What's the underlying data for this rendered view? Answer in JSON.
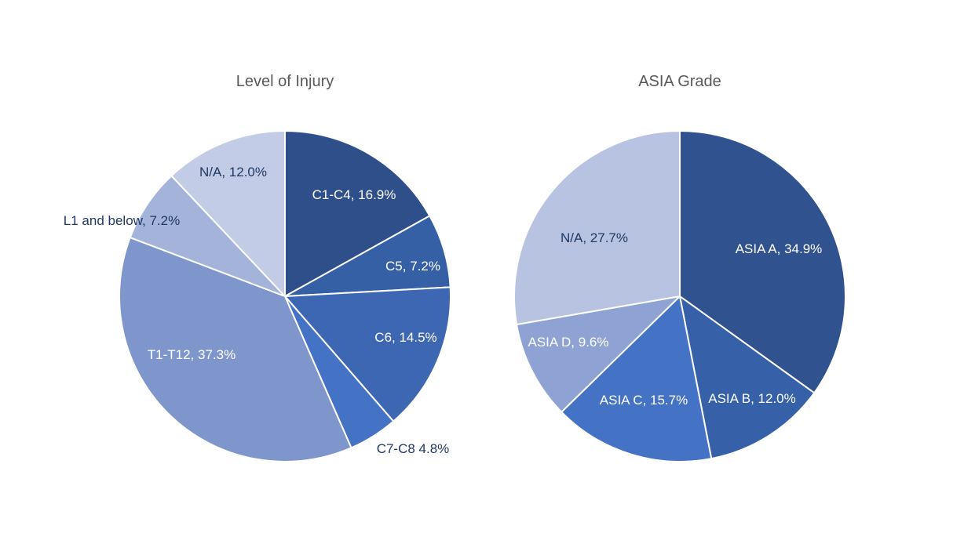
{
  "chart_data": [
    {
      "type": "pie",
      "title": "Level of Injury",
      "slices": [
        {
          "label": "C1-C4, 16.9%",
          "category": "C1-C4",
          "value": 16.9,
          "color": "#2F4F8B",
          "label_color": "#FFFFFF"
        },
        {
          "label": "C5, 7.2%",
          "category": "C5",
          "value": 7.2,
          "color": "#3560A6",
          "label_color": "#FFFFFF"
        },
        {
          "label": "C6, 14.5%",
          "category": "C6",
          "value": 14.5,
          "color": "#3D66B3",
          "label_color": "#FFFFFF"
        },
        {
          "label": "C7-C8  4.8%",
          "category": "C7-C8",
          "value": 4.8,
          "color": "#4472C4",
          "label_color": "#1F3864"
        },
        {
          "label": "T1-T12, 37.3%",
          "category": "T1-T12",
          "value": 37.3,
          "color": "#7F96CD",
          "label_color": "#FFFFFF"
        },
        {
          "label": "L1 and below, 7.2%",
          "category": "L1 and below",
          "value": 7.2,
          "color": "#A4B3D9",
          "label_color": "#1F3864"
        },
        {
          "label": "N/A, 12.0%",
          "category": "N/A",
          "value": 12.0,
          "color": "#C3CCE6",
          "label_color": "#1F3864"
        }
      ]
    },
    {
      "type": "pie",
      "title": "ASIA Grade",
      "slices": [
        {
          "label": "ASIA A, 34.9%",
          "category": "ASIA A",
          "value": 34.9,
          "color": "#30528F",
          "label_color": "#FFFFFF"
        },
        {
          "label": "ASIA B, 12.0%",
          "category": "ASIA B",
          "value": 12.0,
          "color": "#3660A8",
          "label_color": "#FFFFFF"
        },
        {
          "label": "ASIA C, 15.7%",
          "category": "ASIA C",
          "value": 15.7,
          "color": "#4472C4",
          "label_color": "#FFFFFF"
        },
        {
          "label": "ASIA D, 9.6%",
          "category": "ASIA D",
          "value": 9.6,
          "color": "#8EA2D4",
          "label_color": "#FFFFFF"
        },
        {
          "label": "N/A, 27.7%",
          "category": "N/A",
          "value": 27.7,
          "color": "#B8C3E2",
          "label_color": "#1F3864"
        }
      ]
    }
  ]
}
